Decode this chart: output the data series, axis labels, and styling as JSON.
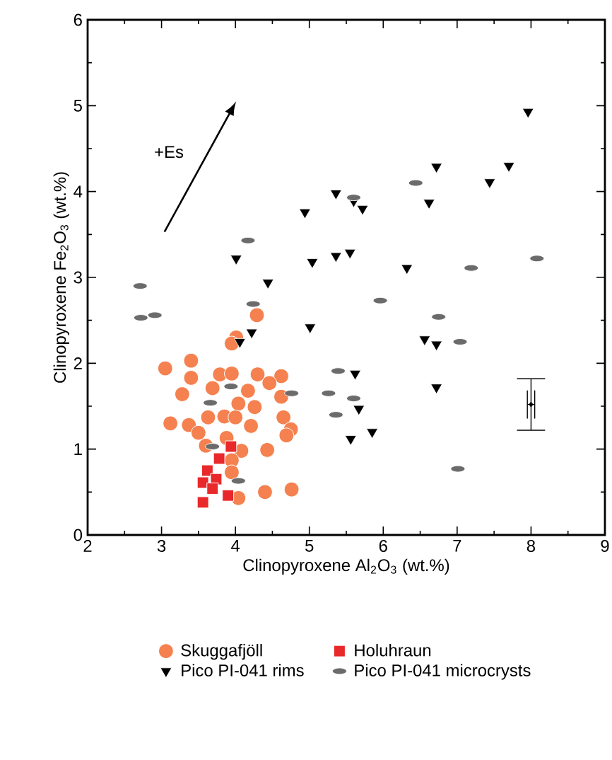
{
  "chart_data": {
    "type": "scatter",
    "xlabel": "Clinopyroxene Al$_{2}$O$_{3}$ (wt.%)",
    "ylabel": "Clinopyroxene Fe$_{2}$O$_{3}$ (wt.%)",
    "xlim": [
      2,
      9
    ],
    "ylim": [
      0,
      6
    ],
    "xticks": [
      2,
      3,
      4,
      5,
      6,
      7,
      8,
      9
    ],
    "yticks": [
      0,
      1,
      2,
      3,
      4,
      5,
      6
    ],
    "grid": false,
    "legend": "bottom",
    "annotations": [
      "+Es"
    ],
    "series": [
      {
        "name": "Skuggafjöll",
        "color": "#f4814f",
        "marker": "circle",
        "x": [
          4.29,
          4.01,
          3.95,
          3.05,
          3.4,
          3.4,
          3.79,
          3.95,
          4.3,
          4.62,
          4.46,
          3.28,
          3.69,
          4.17,
          4.62,
          4.26,
          4.04,
          3.12,
          3.37,
          3.63,
          3.85,
          4.0,
          4.21,
          4.65,
          4.75,
          3.5,
          3.6,
          3.88,
          4.08,
          4.43,
          4.69,
          3.95,
          4.4,
          4.76,
          4.04,
          3.95
        ],
        "values": [
          2.56,
          2.3,
          2.23,
          1.94,
          2.03,
          1.83,
          1.87,
          1.88,
          1.87,
          1.85,
          1.77,
          1.64,
          1.71,
          1.68,
          1.61,
          1.49,
          1.53,
          1.3,
          1.28,
          1.37,
          1.38,
          1.37,
          1.27,
          1.37,
          1.23,
          1.19,
          1.04,
          1.13,
          0.98,
          0.99,
          1.16,
          0.87,
          0.5,
          0.53,
          0.43,
          0.73
        ]
      },
      {
        "name": "Holuhraun",
        "color": "#e8282a",
        "marker": "square",
        "x": [
          3.94,
          3.78,
          3.62,
          3.74,
          3.56,
          3.69,
          3.9,
          3.56
        ],
        "values": [
          1.03,
          0.89,
          0.75,
          0.65,
          0.61,
          0.54,
          0.46,
          0.38
        ]
      },
      {
        "name": "Pico PI-041 rims",
        "color": "#000000",
        "marker": "triangle",
        "x": [
          7.96,
          6.72,
          7.7,
          7.44,
          5.36,
          5.6,
          5.72,
          6.62,
          5.36,
          5.55,
          6.32,
          6.56,
          6.72,
          5.62,
          6.72,
          5.67,
          5.85,
          5.56,
          4.01,
          5.04,
          4.44,
          4.22,
          4.06,
          5.01,
          4.94
        ],
        "values": [
          4.93,
          4.29,
          4.3,
          4.11,
          3.98,
          3.89,
          3.8,
          3.87,
          3.25,
          3.29,
          3.11,
          2.28,
          2.22,
          1.88,
          1.72,
          1.47,
          1.2,
          1.12,
          3.22,
          3.18,
          2.94,
          2.36,
          2.25,
          2.42,
          3.76
        ]
      },
      {
        "name": "Pico PI-041 microcrysts",
        "color": "#6b6b6b",
        "x": [
          5.6,
          6.44,
          7.19,
          8.08,
          5.96,
          6.75,
          7.04,
          5.39,
          5.26,
          5.6,
          5.36,
          7.01,
          2.71,
          2.72,
          2.91,
          4.24,
          4.17,
          3.94,
          3.66,
          4.76,
          3.69,
          4.04
        ],
        "values": [
          3.93,
          4.1,
          3.11,
          3.22,
          2.73,
          2.54,
          2.25,
          1.91,
          1.65,
          1.59,
          1.4,
          0.77,
          2.9,
          2.53,
          2.56,
          2.69,
          3.43,
          1.73,
          1.54,
          1.65,
          1.03,
          0.63
        ]
      },
      {
        "color": "#000000",
        "marker": "diamond",
        "x": [
          8.0
        ],
        "values": [
          1.52
        ],
        "errors": [
          0.3
        ],
        "xerrors": [
          0.05
        ]
      }
    ]
  }
}
